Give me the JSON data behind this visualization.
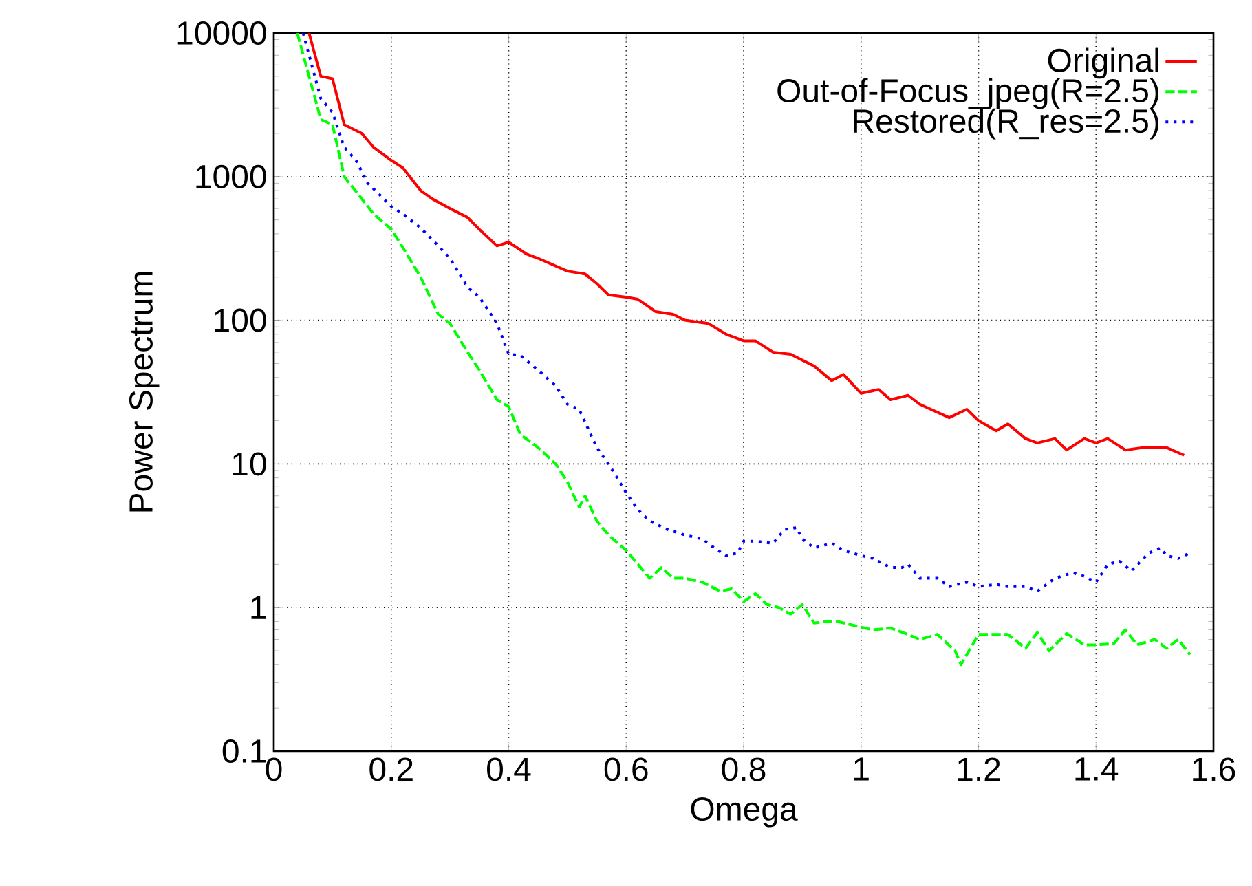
{
  "chart_data": {
    "type": "line",
    "xlabel": "Omega",
    "ylabel": "Power Spectrum",
    "xlim": [
      0,
      1.6
    ],
    "ylim": [
      0.1,
      10000
    ],
    "xticks": [
      0,
      0.2,
      0.4,
      0.6,
      0.8,
      1,
      1.2,
      1.4,
      1.6
    ],
    "yticks": [
      0.1,
      1,
      10,
      100,
      1000,
      10000
    ],
    "log": "y",
    "grid": true,
    "legend": "top right",
    "marker": "none",
    "series": [
      {
        "name": "Original",
        "color": "#ff0000",
        "line_style": "solid",
        "x": [
          0.06,
          0.08,
          0.1,
          0.12,
          0.15,
          0.17,
          0.2,
          0.22,
          0.25,
          0.27,
          0.3,
          0.33,
          0.35,
          0.38,
          0.4,
          0.43,
          0.45,
          0.5,
          0.53,
          0.55,
          0.57,
          0.6,
          0.62,
          0.65,
          0.68,
          0.7,
          0.74,
          0.77,
          0.8,
          0.82,
          0.85,
          0.88,
          0.92,
          0.95,
          0.97,
          1.0,
          1.03,
          1.05,
          1.08,
          1.1,
          1.15,
          1.18,
          1.2,
          1.23,
          1.25,
          1.28,
          1.3,
          1.33,
          1.35,
          1.38,
          1.4,
          1.42,
          1.45,
          1.48,
          1.5,
          1.52,
          1.55
        ],
        "values": [
          10000,
          5000,
          4800,
          2300,
          2000,
          1600,
          1300,
          1150,
          800,
          700,
          600,
          520,
          430,
          330,
          350,
          290,
          270,
          220,
          210,
          180,
          150,
          145,
          140,
          115,
          110,
          100,
          95,
          80,
          72,
          72,
          60,
          58,
          48,
          38,
          42,
          31,
          33,
          28,
          30,
          26,
          21,
          24,
          20,
          17,
          19,
          15,
          14,
          15,
          12.5,
          15,
          14,
          15,
          12.5,
          13,
          13,
          13,
          11.5
        ]
      },
      {
        "name": "Out-of-Focus_jpeg(R=2.5)",
        "color": "#00ff00",
        "line_style": "dashed",
        "x": [
          0.04,
          0.06,
          0.08,
          0.1,
          0.12,
          0.15,
          0.17,
          0.2,
          0.22,
          0.25,
          0.28,
          0.3,
          0.33,
          0.35,
          0.38,
          0.4,
          0.42,
          0.45,
          0.48,
          0.5,
          0.52,
          0.53,
          0.55,
          0.57,
          0.6,
          0.62,
          0.64,
          0.66,
          0.68,
          0.7,
          0.73,
          0.76,
          0.78,
          0.8,
          0.82,
          0.84,
          0.86,
          0.88,
          0.9,
          0.92,
          0.94,
          0.96,
          1.0,
          1.02,
          1.05,
          1.08,
          1.1,
          1.13,
          1.16,
          1.17,
          1.2,
          1.25,
          1.28,
          1.3,
          1.32,
          1.35,
          1.38,
          1.4,
          1.43,
          1.45,
          1.47,
          1.5,
          1.52,
          1.54,
          1.56
        ],
        "values": [
          10000,
          5000,
          2500,
          2300,
          1000,
          700,
          550,
          430,
          320,
          200,
          110,
          95,
          60,
          45,
          28,
          25,
          16,
          13,
          10,
          7.5,
          5,
          6,
          4,
          3.2,
          2.5,
          2,
          1.6,
          1.9,
          1.6,
          1.6,
          1.5,
          1.3,
          1.35,
          1.1,
          1.25,
          1.05,
          1,
          0.9,
          1.05,
          0.78,
          0.8,
          0.8,
          0.73,
          0.7,
          0.72,
          0.65,
          0.6,
          0.65,
          0.5,
          0.4,
          0.65,
          0.65,
          0.52,
          0.67,
          0.5,
          0.66,
          0.55,
          0.55,
          0.56,
          0.7,
          0.55,
          0.6,
          0.52,
          0.6,
          0.47
        ]
      },
      {
        "name": "Restored(R_res=2.5)",
        "color": "#0000ff",
        "line_style": "dotted",
        "x": [
          0.05,
          0.08,
          0.1,
          0.12,
          0.14,
          0.16,
          0.18,
          0.2,
          0.22,
          0.25,
          0.28,
          0.3,
          0.33,
          0.35,
          0.38,
          0.4,
          0.42,
          0.45,
          0.48,
          0.5,
          0.52,
          0.55,
          0.57,
          0.6,
          0.62,
          0.64,
          0.67,
          0.7,
          0.73,
          0.75,
          0.77,
          0.79,
          0.8,
          0.82,
          0.85,
          0.87,
          0.89,
          0.9,
          0.92,
          0.95,
          0.97,
          1.0,
          1.02,
          1.05,
          1.07,
          1.08,
          1.1,
          1.13,
          1.15,
          1.18,
          1.2,
          1.23,
          1.25,
          1.28,
          1.3,
          1.33,
          1.36,
          1.38,
          1.4,
          1.42,
          1.44,
          1.46,
          1.49,
          1.51,
          1.52,
          1.54,
          1.56
        ],
        "values": [
          10000,
          3500,
          2800,
          1600,
          1300,
          900,
          750,
          620,
          550,
          440,
          330,
          270,
          170,
          145,
          95,
          58,
          57,
          45,
          35,
          26,
          24,
          13,
          10,
          6.3,
          4.8,
          4,
          3.5,
          3.2,
          3,
          2.6,
          2.3,
          2.4,
          2.9,
          2.9,
          2.8,
          3.5,
          3.6,
          3,
          2.6,
          2.8,
          2.5,
          2.3,
          2.2,
          1.9,
          1.9,
          2,
          1.6,
          1.6,
          1.4,
          1.5,
          1.4,
          1.45,
          1.4,
          1.4,
          1.3,
          1.6,
          1.75,
          1.65,
          1.5,
          2,
          2.1,
          1.8,
          2.4,
          2.6,
          2.3,
          2.2,
          2.4
        ]
      }
    ]
  }
}
